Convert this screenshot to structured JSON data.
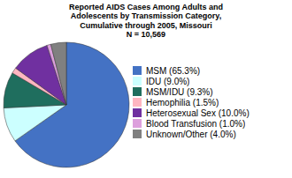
{
  "chart_data": {
    "type": "pie",
    "title": "Reported AIDS Cases Among Adults and\nAdolescents by Transmission Category,\nCumulative through 2005, Missouri\nN = 10,569",
    "categories": [
      "MSM (65.3%)",
      "IDU (9.0%)",
      "MSM/IDU (9.3%)",
      "Hemophilia (1.5%)",
      "Heterosexual Sex (10.0%)",
      "Blood Transfusion (1.0%)",
      "Unknown/Other (4.0%)"
    ],
    "values": [
      65.3,
      9.0,
      9.3,
      1.5,
      10.0,
      1.0,
      4.0
    ],
    "colors": [
      "#4472C4",
      "#CCFFFF",
      "#1F6E5E",
      "#FFB6C1",
      "#7030A0",
      "#DDA0DD",
      "#808080"
    ],
    "legend": "right"
  }
}
